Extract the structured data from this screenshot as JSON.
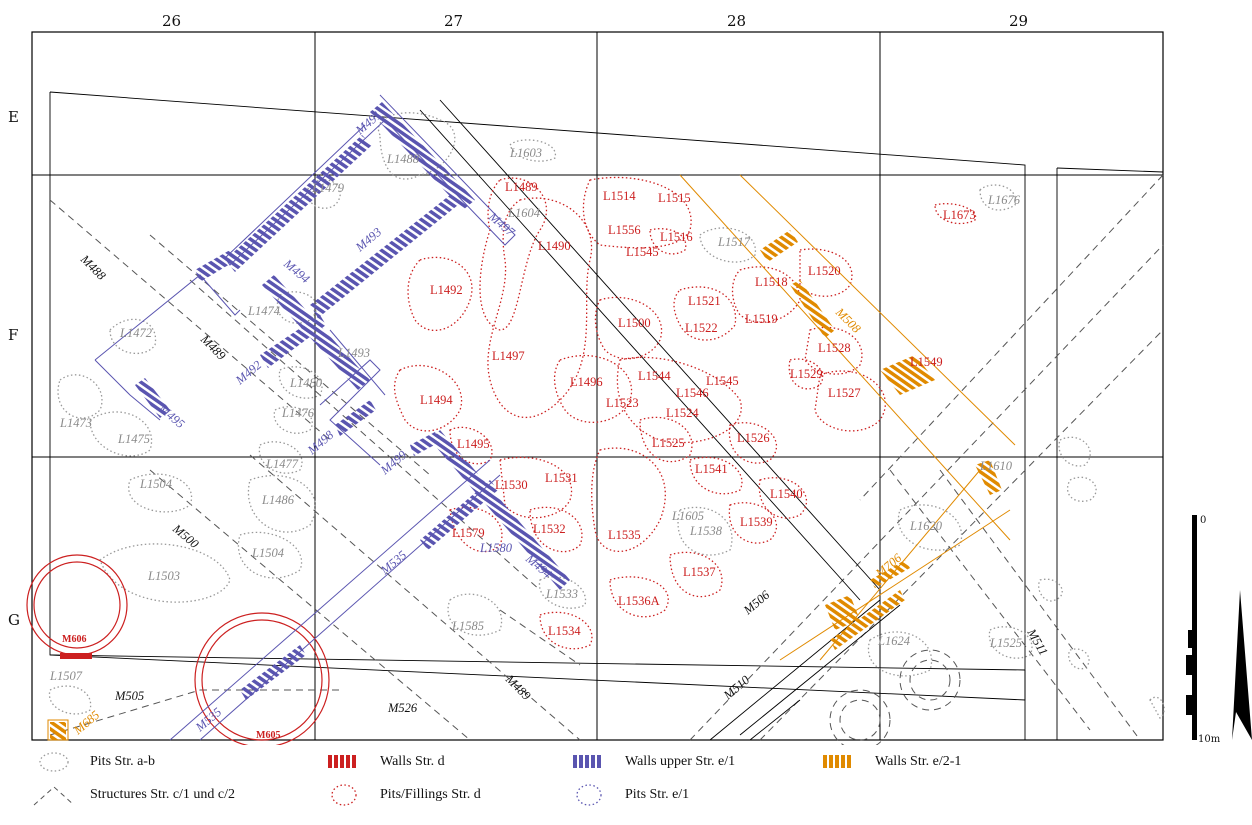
{
  "grid": {
    "columns": [
      "26",
      "27",
      "28",
      "29"
    ],
    "rows": [
      "E",
      "F",
      "G"
    ]
  },
  "scale": {
    "top": "0",
    "bottom": "10m"
  },
  "labels": {
    "grey": [
      "L1488",
      "L1479",
      "L1603",
      "L1604",
      "L1676",
      "L1472",
      "L1474",
      "L1493",
      "L1480",
      "L1476",
      "L1473",
      "L1475",
      "L1477",
      "L1504",
      "L1486",
      "L1504",
      "L1503",
      "L1585",
      "L1507",
      "L1605",
      "L1538",
      "L1533",
      "L1620",
      "L1624",
      "L1525",
      "L1610",
      "L1517"
    ],
    "red": [
      "L1489",
      "L1514",
      "L1515",
      "L1556",
      "L1516",
      "L1545",
      "L1673",
      "L1490",
      "L1518",
      "L1520",
      "L1492",
      "L1521",
      "L1519",
      "L1500",
      "L1522",
      "L1528",
      "L1549",
      "L1497",
      "L1529",
      "L1496",
      "L1544",
      "L1545",
      "L1546",
      "L1527",
      "L1494",
      "L1523",
      "L1524",
      "L1526",
      "L1495",
      "L1525",
      "L1541",
      "L1530",
      "L1531",
      "L1540",
      "L1532",
      "L1579",
      "L1535",
      "L1539",
      "L1537",
      "L1536A",
      "L1534",
      "M606",
      "M605"
    ],
    "blue": [
      "M491",
      "M497",
      "M493",
      "M494",
      "M492",
      "M495",
      "M498",
      "M499",
      "M535",
      "L1580",
      "M494",
      "M535"
    ],
    "orange": [
      "M508",
      "M706",
      "M685"
    ],
    "black": [
      "M488",
      "M489",
      "M500",
      "M506",
      "M505",
      "M526",
      "M489",
      "M510",
      "M511"
    ]
  },
  "legend": [
    {
      "icon": "pits-ab-icon",
      "label": "Pits Str. a-b"
    },
    {
      "icon": "walls-d-icon",
      "label": "Walls Str. d",
      "color": "#cc2020"
    },
    {
      "icon": "walls-e1-icon",
      "label": "Walls upper Str. e/1",
      "color": "#5a55b0"
    },
    {
      "icon": "walls-e21-icon",
      "label": "Walls Str. e/2-1",
      "color": "#e08a00"
    },
    {
      "icon": "structures-c-icon",
      "label": "Structures Str. c/1 und c/2"
    },
    {
      "icon": "pits-d-icon",
      "label": "Pits/Fillings Str. d",
      "color": "#cc2020"
    },
    {
      "icon": "pits-e1-icon",
      "label": "Pits Str. e/1",
      "color": "#5a55b0"
    }
  ]
}
